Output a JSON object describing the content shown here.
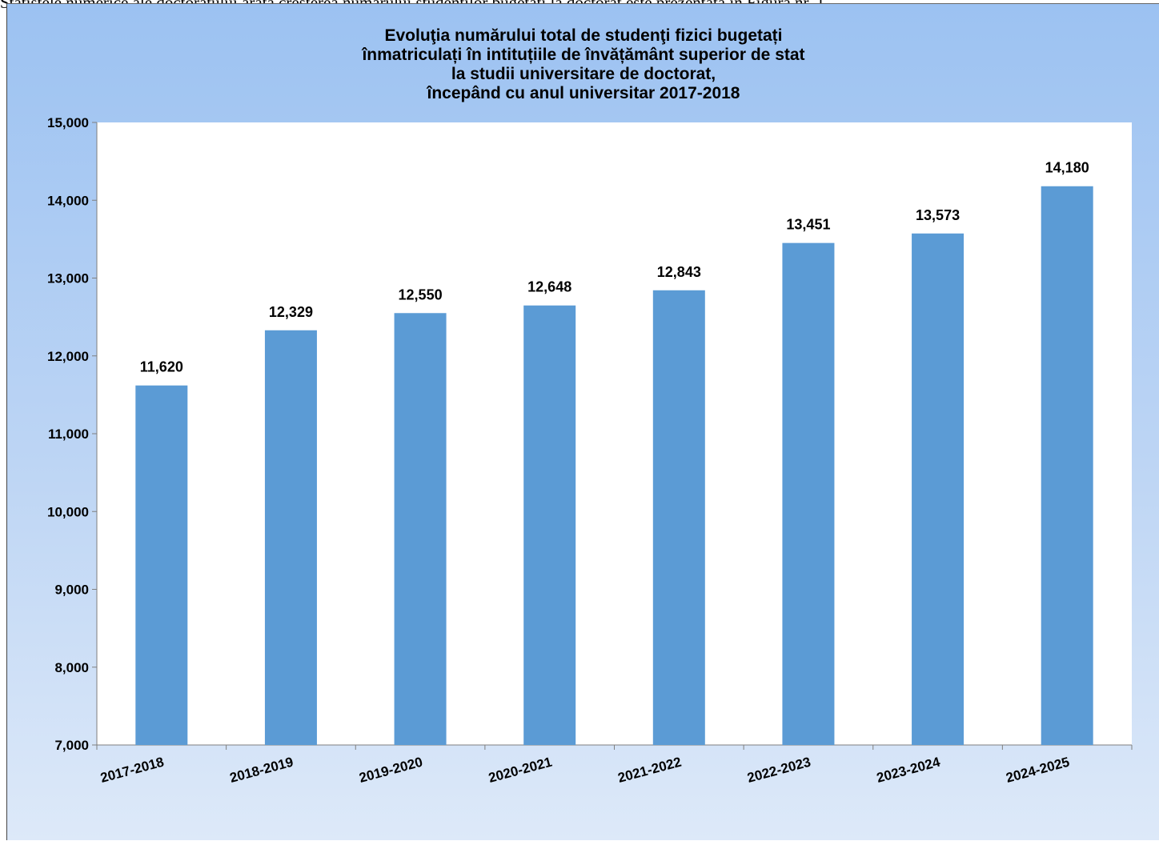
{
  "page": {
    "top_text": "Statistele numerice ale doctoratului arată creșterea numărului studenților bugetați la doctorat este prezentată în Figura nr. 1"
  },
  "chart_data": {
    "type": "bar",
    "title_lines": [
      "Evoluţia numărului total de studenţi fizici bugetați",
      "înmatriculați în intituțiile de învățământ superior de stat",
      "la studii universitare de doctorat,",
      "începând cu anul universitar 2017-2018"
    ],
    "categories": [
      "2017-2018",
      "2018-2019",
      "2019-2020",
      "2020-2021",
      "2021-2022",
      "2022-2023",
      "2023-2024",
      "2024-2025"
    ],
    "values": [
      11620,
      12329,
      12550,
      12648,
      12843,
      13451,
      13573,
      14180
    ],
    "value_labels": [
      "11,620",
      "12,329",
      "12,550",
      "12,648",
      "12,843",
      "13,451",
      "13,573",
      "14,180"
    ],
    "y_ticks": [
      7000,
      8000,
      9000,
      10000,
      11000,
      12000,
      13000,
      14000,
      15000
    ],
    "y_tick_labels": [
      "7,000",
      "8,000",
      "9,000",
      "10,000",
      "11,000",
      "12,000",
      "13,000",
      "14,000",
      "15,000"
    ],
    "ylim": [
      7000,
      15000
    ],
    "xlabel": "",
    "ylabel": "",
    "grid": false,
    "legend": "none",
    "colors": {
      "bar": "#5b9bd5",
      "plot_bg": "#ffffff",
      "axis": "#7f7f7f"
    }
  }
}
